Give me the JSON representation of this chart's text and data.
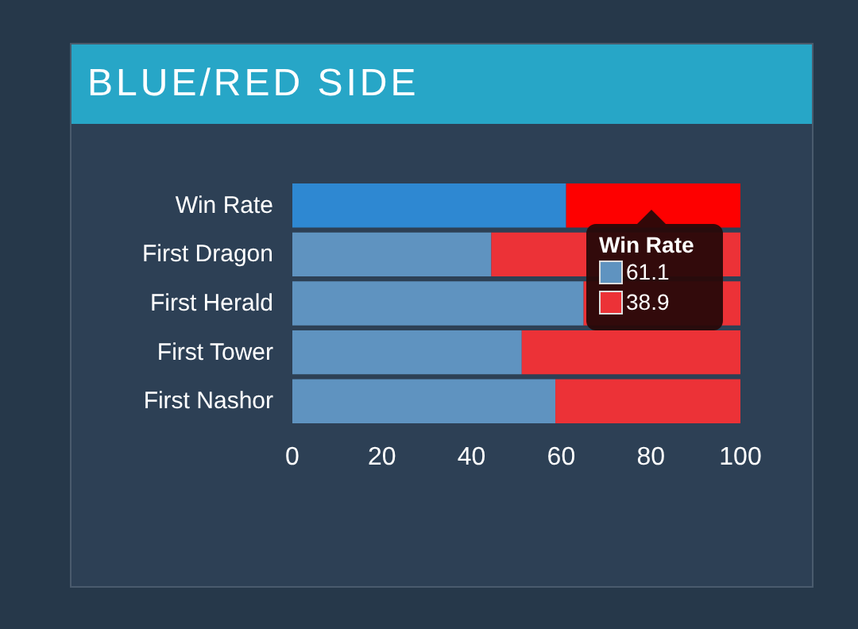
{
  "chart_data": {
    "type": "bar",
    "orientation": "horizontal",
    "stacked": true,
    "title": "BLUE/RED SIDE",
    "categories": [
      "Win Rate",
      "First Dragon",
      "First Herald",
      "First Tower",
      "First Nashor"
    ],
    "series": [
      {
        "colors": [
          "#2e88d2",
          "#5f93c0",
          "#5f93c0",
          "#5f93c0",
          "#5f93c0"
        ],
        "values": [
          61.1,
          44.4,
          65,
          51.2,
          58.7
        ]
      },
      {
        "colors": [
          "#fe0000",
          "#ec3237",
          "#ec3237",
          "#ec3237",
          "#ec3237"
        ],
        "values": [
          38.9,
          55.6,
          35,
          48.8,
          41.3
        ]
      }
    ],
    "xlim": [
      0,
      100
    ],
    "xticks": [
      0,
      20,
      40,
      60,
      80,
      100
    ],
    "grid": false,
    "annotations": [
      "Win Rate",
      "61.1",
      "38.9"
    ]
  }
}
